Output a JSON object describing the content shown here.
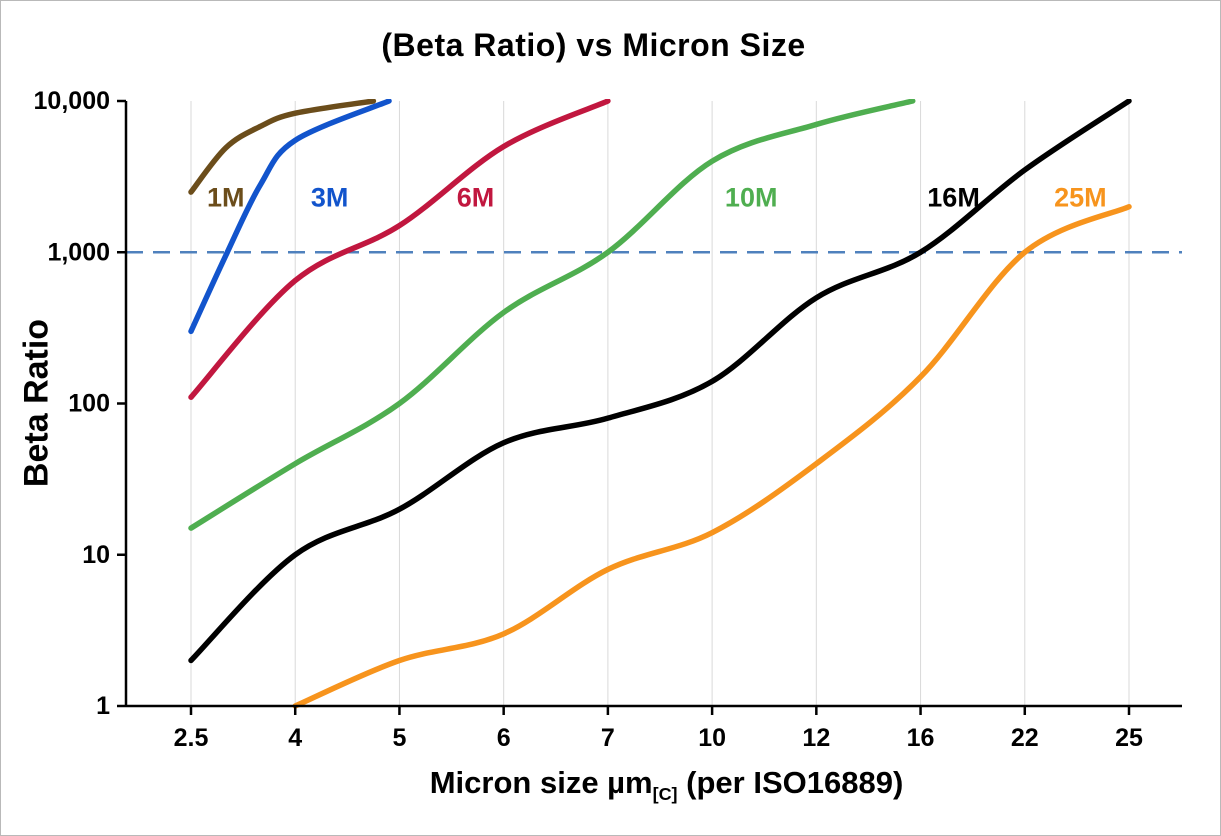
{
  "chart_data": {
    "type": "line",
    "title": "(Beta Ratio) vs Micron Size",
    "ylabel": "Beta Ratio",
    "xlabel": "Micron size µm[C] (per ISO16889)",
    "xlabel_parts": {
      "main": "Micron size µm",
      "sub": "[C]",
      "rest": " (per ISO16889)"
    },
    "x_scale": "categorical-equal-spacing",
    "y_scale": "log10",
    "ylim": [
      1,
      10000
    ],
    "categories": [
      "2.5",
      "4",
      "5",
      "6",
      "7",
      "10",
      "12",
      "16",
      "22",
      "25"
    ],
    "category_values": [
      2.5,
      4,
      5,
      6,
      7,
      10,
      12,
      16,
      22,
      25
    ],
    "y_ticks": [
      {
        "v": 1,
        "label": "1"
      },
      {
        "v": 10,
        "label": "10"
      },
      {
        "v": 100,
        "label": "100"
      },
      {
        "v": 1000,
        "label": "1,000"
      },
      {
        "v": 10000,
        "label": "10,000"
      }
    ],
    "grid": {
      "vertical": true,
      "color": "#d9d9d9"
    },
    "reference_line": {
      "y": 1000,
      "style": "dashed",
      "color": "#4f81bd"
    },
    "legend_position": "inline-labels",
    "series": [
      {
        "name": "1M",
        "color": "#6b4d1b",
        "label_pos": {
          "x": 3.0,
          "y": 2300
        },
        "points": [
          [
            2.5,
            2500
          ],
          [
            3,
            4900
          ],
          [
            3.5,
            6800
          ],
          [
            4,
            8300
          ],
          [
            4.75,
            10000
          ]
        ]
      },
      {
        "name": "3M",
        "color": "#1254cc",
        "label_pos": {
          "x": 4.33,
          "y": 2300
        },
        "points": [
          [
            2.5,
            300
          ],
          [
            3,
            950
          ],
          [
            3.5,
            2800
          ],
          [
            4,
            5500
          ],
          [
            4.9,
            10000
          ]
        ]
      },
      {
        "name": "6M",
        "color": "#c1173f",
        "label_pos": {
          "x": 5.73,
          "y": 2300
        },
        "points": [
          [
            2.5,
            110
          ],
          [
            4,
            650
          ],
          [
            5,
            1500
          ],
          [
            6,
            5000
          ],
          [
            7,
            10000
          ]
        ]
      },
      {
        "name": "10M",
        "color": "#4fae50",
        "label_pos": {
          "x": 10.75,
          "y": 2300
        },
        "points": [
          [
            2.5,
            15
          ],
          [
            4,
            40
          ],
          [
            5,
            100
          ],
          [
            6,
            400
          ],
          [
            7,
            1000
          ],
          [
            10,
            4000
          ],
          [
            12,
            7000
          ],
          [
            15.7,
            10000
          ]
        ]
      },
      {
        "name": "16M",
        "color": "#000000",
        "label_pos": {
          "x": 17.9,
          "y": 2300
        },
        "points": [
          [
            2.5,
            2
          ],
          [
            4,
            10
          ],
          [
            5,
            20
          ],
          [
            6,
            55
          ],
          [
            7,
            80
          ],
          [
            10,
            140
          ],
          [
            12,
            500
          ],
          [
            16,
            1000
          ],
          [
            22,
            3500
          ],
          [
            25,
            10000
          ]
        ]
      },
      {
        "name": "25M",
        "color": "#f7941d",
        "label_pos": {
          "x": 23.6,
          "y": 2300
        },
        "points": [
          [
            4,
            1
          ],
          [
            5,
            2
          ],
          [
            6,
            3
          ],
          [
            7,
            8
          ],
          [
            10,
            14
          ],
          [
            12,
            40
          ],
          [
            16,
            150
          ],
          [
            22,
            1000
          ],
          [
            25,
            2000
          ]
        ]
      }
    ]
  }
}
